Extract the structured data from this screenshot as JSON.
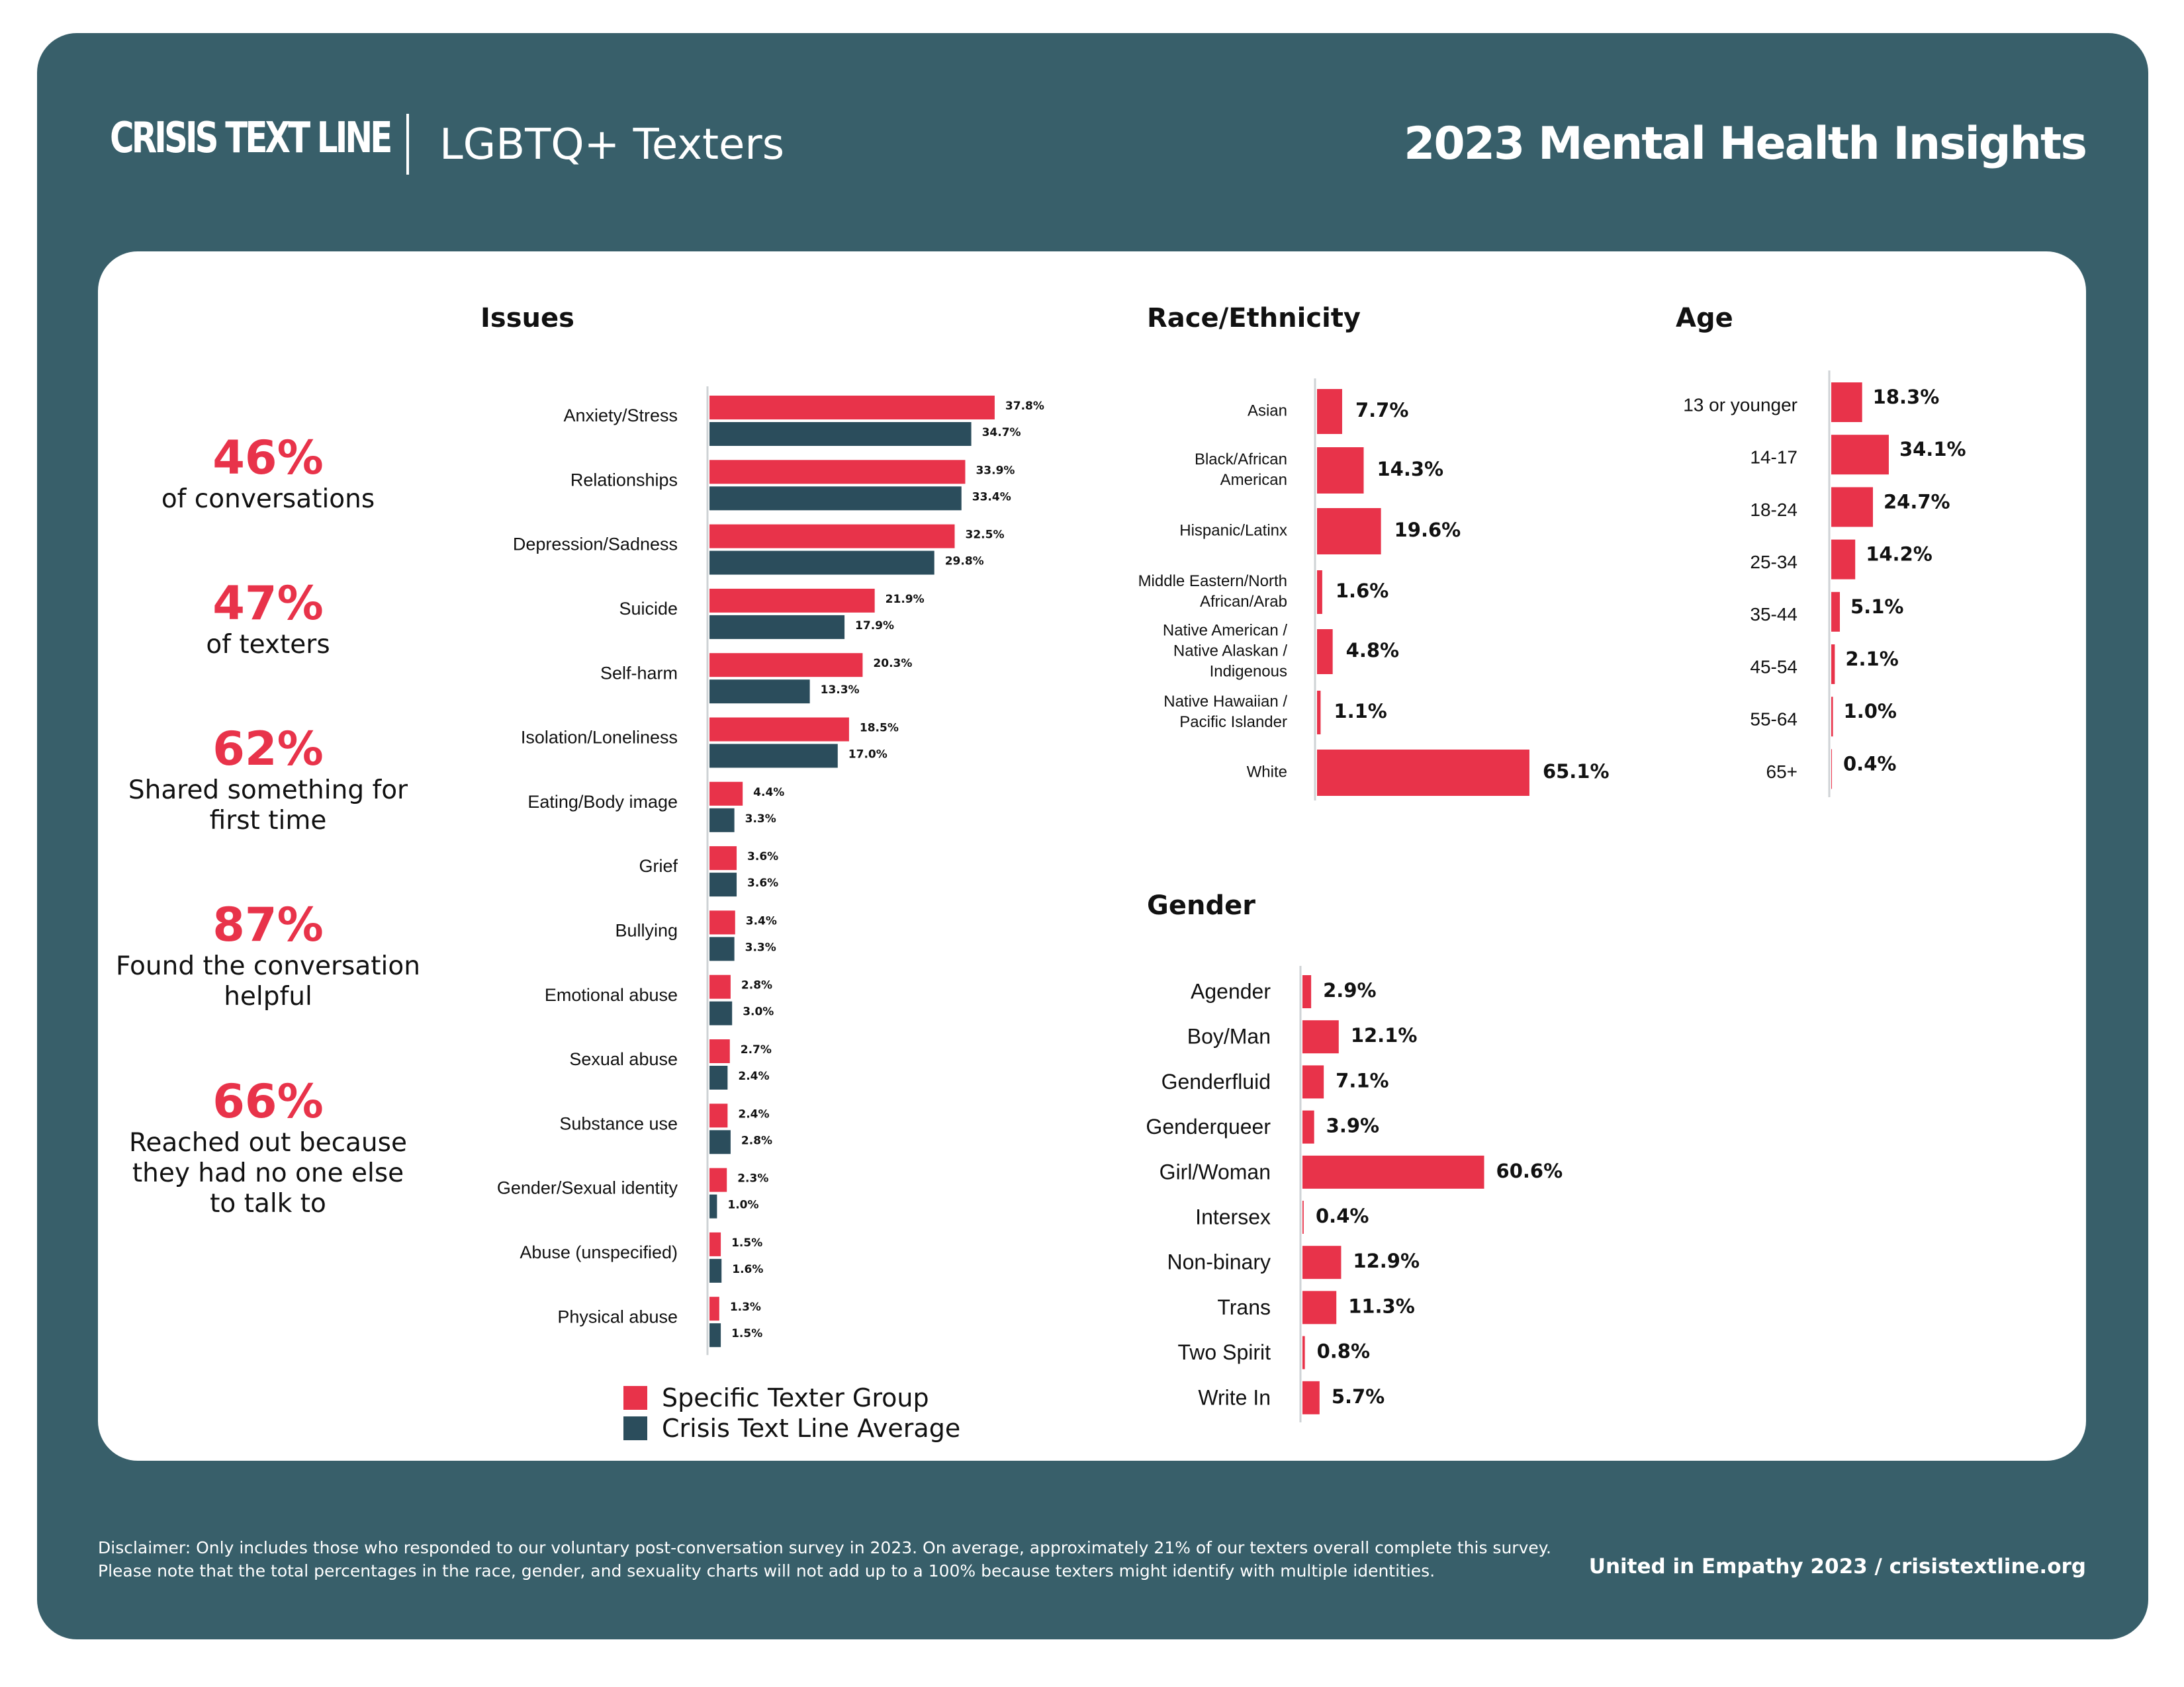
{
  "header": {
    "brand": "CRISIS TEXT LINE",
    "subtitle": "LGBTQ+ Texters",
    "title": "2023 Mental Health Insights"
  },
  "stats": [
    {
      "value": "46%",
      "text": "of conversations"
    },
    {
      "value": "47%",
      "text": "of texters"
    },
    {
      "value": "62%",
      "text": "Shared something for first time"
    },
    {
      "value": "87%",
      "text": "Found the conversation helpful"
    },
    {
      "value": "66%",
      "text": "Reached out because they had no one else to talk to"
    }
  ],
  "colors": {
    "background": "#385f6a",
    "specific": "#e8334a",
    "average": "#2b4d5c"
  },
  "legend": {
    "specific": "Specific Texter Group",
    "average": "Crisis Text Line Average"
  },
  "footer": {
    "disclaimer_line1": "Disclaimer: Only includes those who responded to our voluntary post-conversation survey in 2023. On average, approximately 21% of our texters overall complete this survey.",
    "disclaimer_line2": "Please note that the total percentages in the race, gender, and sexuality charts will not add up to a 100% because texters might identify with multiple identities.",
    "right": "United in Empathy 2023  /  crisistextline.org"
  },
  "chart_data": [
    {
      "type": "bar",
      "orientation": "horizontal",
      "title": "Issues",
      "categories": [
        "Anxiety/Stress",
        "Relationships",
        "Depression/Sadness",
        "Suicide",
        "Self-harm",
        "Isolation/Loneliness",
        "Eating/Body image",
        "Grief",
        "Bullying",
        "Emotional abuse",
        "Sexual abuse",
        "Substance use",
        "Gender/Sexual identity",
        "Abuse (unspecified)",
        "Physical abuse"
      ],
      "series": [
        {
          "name": "Specific Texter Group",
          "values": [
            37.8,
            33.9,
            32.5,
            21.9,
            20.3,
            18.5,
            4.4,
            3.6,
            3.4,
            2.8,
            2.7,
            2.4,
            2.3,
            1.5,
            1.3
          ],
          "labels": [
            "37.8%",
            "33.9%",
            "32.5%",
            "21.9%",
            "20.3%",
            "18.5%",
            "4.4%",
            "3.6%",
            "3.4%",
            "2.8%",
            "2.7%",
            "2.4%",
            "2.3%",
            "1.5%",
            "1.3%"
          ]
        },
        {
          "name": "Crisis Text Line Average",
          "values": [
            34.7,
            33.4,
            29.8,
            17.9,
            13.3,
            17.0,
            3.3,
            3.6,
            3.3,
            3.0,
            2.4,
            2.8,
            1.0,
            1.6,
            1.5
          ],
          "labels": [
            "34.7%",
            "33.4%",
            "29.8%",
            "17.9%",
            "13.3%",
            "17.0%",
            "3.3%",
            "3.6%",
            "3.3%",
            "3.0%",
            "2.4%",
            "2.8%",
            "1.0%",
            "1.6%",
            "1.5%"
          ]
        }
      ]
    },
    {
      "type": "bar",
      "orientation": "horizontal",
      "title": "Race/Ethnicity",
      "categories": [
        [
          "Asian"
        ],
        [
          "Black/African",
          "American"
        ],
        [
          "Hispanic/Latinx"
        ],
        [
          "Middle Eastern/North",
          "African/Arab"
        ],
        [
          "Native American /",
          "Native Alaskan /",
          "Indigenous"
        ],
        [
          "Native Hawaiian /",
          "Pacific Islander"
        ],
        [
          "White"
        ]
      ],
      "values": [
        7.7,
        14.3,
        19.6,
        1.6,
        4.8,
        1.1,
        65.1
      ],
      "labels": [
        "7.7%",
        "14.3%",
        "19.6%",
        "1.6%",
        "4.8%",
        "1.1%",
        "65.1%"
      ]
    },
    {
      "type": "bar",
      "orientation": "horizontal",
      "title": "Age",
      "categories": [
        "13 or younger",
        "14-17",
        "18-24",
        "25-34",
        "35-44",
        "45-54",
        "55-64",
        "65+"
      ],
      "values": [
        18.3,
        34.1,
        24.7,
        14.2,
        5.1,
        2.1,
        1.0,
        0.4
      ],
      "labels": [
        "18.3%",
        "34.1%",
        "24.7%",
        "14.2%",
        "5.1%",
        "2.1%",
        "1.0%",
        "0.4%"
      ]
    },
    {
      "type": "bar",
      "orientation": "horizontal",
      "title": "Gender",
      "categories": [
        "Agender",
        "Boy/Man",
        "Genderfluid",
        "Genderqueer",
        "Girl/Woman",
        "Intersex",
        "Non-binary",
        "Trans",
        "Two Spirit",
        "Write In"
      ],
      "values": [
        2.9,
        12.1,
        7.1,
        3.9,
        60.6,
        0.4,
        12.9,
        11.3,
        0.8,
        5.7
      ],
      "labels": [
        "2.9%",
        "12.1%",
        "7.1%",
        "3.9%",
        "60.6%",
        "0.4%",
        "12.9%",
        "11.3%",
        "0.8%",
        "5.7%"
      ]
    }
  ]
}
